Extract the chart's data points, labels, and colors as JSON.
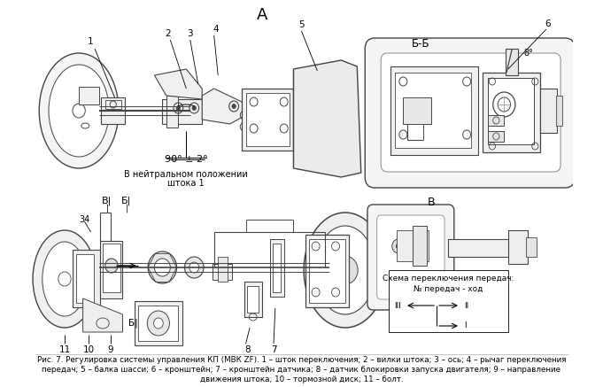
{
  "title_label": "А",
  "section_bb": "Б-Б",
  "section_b": "В",
  "caption_line1": "Рис. 7. Регулировка системы управления КП (МВК ZF). 1 – шток переключения; 2 – вилки штока; 3 – ось; 4 – рычаг переключения",
  "caption_line2": "передач; 5 – балка шасси; 6 – кронштейн; 7 – кронштейн датчика; 8 – датчик блокировки запуска двигателя; 9 – направление",
  "caption_line3": "движения штока; 10 – тормозной диск; 11 – болт.",
  "neutral_text1": "В нейтральном положении",
  "neutral_text2": "штока 1",
  "angle_text": "90° ± 2°",
  "gear_schema_line1": "Схема переключения передач:",
  "gear_schema_line2": "№ передач - ход",
  "angle_8deg": "8°",
  "label_34": "34",
  "bg_color": "#ffffff",
  "line_color": "#444444",
  "light_gray": "#cccccc",
  "mid_gray": "#888888"
}
